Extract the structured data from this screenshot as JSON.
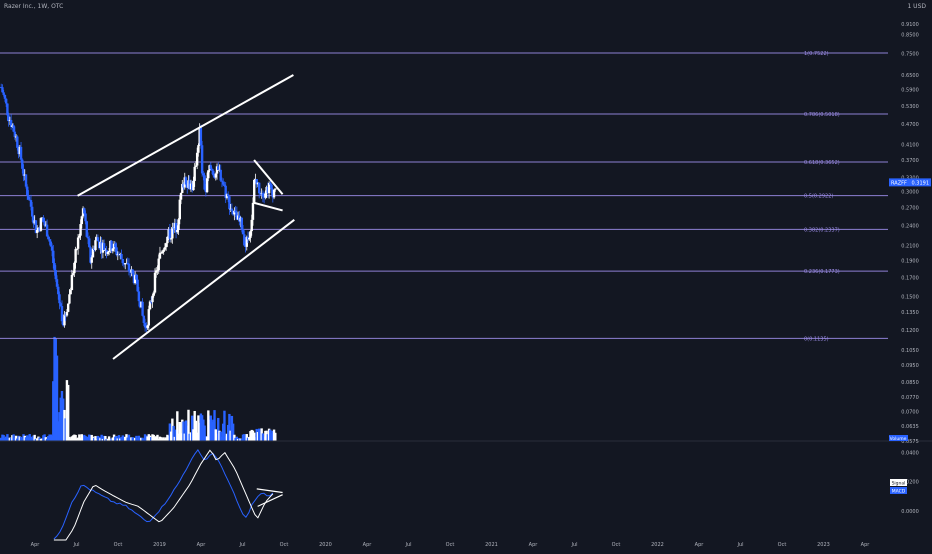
{
  "header": {
    "title": "Razer Inc., 1W, OTC",
    "currency": "USD"
  },
  "colors": {
    "background": "#131722",
    "bull": "#ffffff",
    "bear": "#2962ff",
    "fib_line": "#9c8ce8",
    "trendline": "#ffffff",
    "macd_line": "#2962ff",
    "signal_line": "#ffffff",
    "axis_text": "#b2b5be",
    "price_tag": "#2962ff"
  },
  "chart_data": [
    {
      "type": "candlestick",
      "scale": "log",
      "ylim": [
        0.0575,
        1.0
      ],
      "y_ticks": [
        1.0,
        0.91,
        0.85,
        0.75,
        0.65,
        0.59,
        0.53,
        0.47,
        0.41,
        0.37,
        0.33,
        0.3,
        0.27,
        0.24,
        0.21,
        0.19,
        0.17,
        0.15,
        0.135,
        0.12,
        0.105,
        0.095,
        0.085,
        0.077,
        0.07,
        0.0635,
        0.0575
      ],
      "y_tick_labels": [
        "1 USD",
        "0.9100",
        "0.8500",
        "0.7500",
        "0.6500",
        "0.5900",
        "0.5300",
        "0.4700",
        "0.4100",
        "0.3700",
        "0.3300",
        "0.3000",
        "0.2700",
        "0.2400",
        "0.2100",
        "0.1900",
        "0.1700",
        "0.1500",
        "0.1350",
        "0.1200",
        "0.1050",
        "0.0950",
        "0.0850",
        "0.0770",
        "0.0700",
        "0.0635",
        "0.0575"
      ],
      "x_ticks": [
        "Apr",
        "Jul",
        "Oct",
        "2019",
        "Apr",
        "Jul",
        "Oct",
        "2020",
        "Apr",
        "Jul",
        "Oct",
        "2021",
        "Apr",
        "Jul",
        "Oct",
        "2022",
        "Apr",
        "Jul",
        "Oct",
        "2023",
        "Apr"
      ],
      "fib_levels": [
        {
          "label": "1(0.7522)",
          "value": 0.7522
        },
        {
          "label": "0.786(0.5018)",
          "value": 0.5018
        },
        {
          "label": "0.618(0.3652)",
          "value": 0.3652
        },
        {
          "label": "0.5(0.2922)",
          "value": 0.2922
        },
        {
          "label": "0.382(0.2337)",
          "value": 0.2337
        },
        {
          "label": "0.236(0.1773)",
          "value": 0.1773
        },
        {
          "label": "0(0.1135)",
          "value": 0.1135
        }
      ],
      "last_price_label": "RAZFF",
      "last_price": "0.3191",
      "volume_tag": "Volume",
      "anchor_prices": [
        [
          "2018-01-01",
          0.6
        ],
        [
          "2018-02-10",
          0.5
        ],
        [
          "2018-03-20",
          0.44
        ],
        [
          "2018-04-20",
          0.38
        ],
        [
          "2018-05-20",
          0.31
        ],
        [
          "2018-06-20",
          0.27
        ],
        [
          "2018-07-20",
          0.23
        ],
        [
          "2018-08-20",
          0.25
        ],
        [
          "2018-09-20",
          0.23
        ],
        [
          "2018-10-15",
          0.2
        ],
        [
          "2018-11-01",
          0.17
        ],
        [
          "2018-12-01",
          0.14
        ],
        [
          "2018-12-20",
          0.125
        ],
        [
          "2019-01-20",
          0.15
        ],
        [
          "2019-02-20",
          0.19
        ],
        [
          "2019-03-20",
          0.23
        ],
        [
          "2019-04-10",
          0.27
        ],
        [
          "2019-05-01",
          0.22
        ],
        [
          "2019-05-20",
          0.19
        ],
        [
          "2019-06-20",
          0.22
        ],
        [
          "2019-07-20",
          0.21
        ],
        [
          "2019-08-20",
          0.205
        ],
        [
          "2019-09-20",
          0.21
        ],
        [
          "2019-10-20",
          0.2
        ],
        [
          "2019-11-20",
          0.19
        ],
        [
          "2019-12-20",
          0.18
        ],
        [
          "2020-01-20",
          0.17
        ],
        [
          "2020-02-20",
          0.15
        ],
        [
          "2020-03-10",
          0.13
        ],
        [
          "2020-03-25",
          0.12
        ],
        [
          "2020-04-20",
          0.14
        ],
        [
          "2020-05-20",
          0.17
        ],
        [
          "2020-06-20",
          0.2
        ],
        [
          "2020-07-20",
          0.22
        ],
        [
          "2020-08-20",
          0.23
        ],
        [
          "2020-09-20",
          0.24
        ],
        [
          "2020-10-15",
          0.3
        ],
        [
          "2020-11-01",
          0.33
        ],
        [
          "2020-11-20",
          0.32
        ],
        [
          "2020-12-20",
          0.31
        ],
        [
          "2021-01-10",
          0.39
        ],
        [
          "2021-01-25",
          0.45
        ],
        [
          "2021-02-10",
          0.33
        ],
        [
          "2021-03-01",
          0.3
        ],
        [
          "2021-03-20",
          0.35
        ],
        [
          "2021-04-20",
          0.34
        ],
        [
          "2021-05-20",
          0.34
        ],
        [
          "2021-06-20",
          0.3
        ],
        [
          "2021-07-20",
          0.27
        ],
        [
          "2021-08-20",
          0.25
        ],
        [
          "2021-09-20",
          0.24
        ],
        [
          "2021-10-10",
          0.21
        ],
        [
          "2021-10-25",
          0.22
        ],
        [
          "2021-11-20",
          0.26
        ],
        [
          "2021-12-01",
          0.33
        ],
        [
          "2021-12-20",
          0.31
        ],
        [
          "2022-01-20",
          0.3
        ],
        [
          "2022-02-20",
          0.31
        ],
        [
          "2022-03-20",
          0.3
        ],
        [
          "2022-04-01",
          0.3191
        ]
      ],
      "trendlines": [
        {
          "name": "channel-upper",
          "from": [
            "2019-03-15",
            0.292
          ],
          "to": [
            "2022-07-15",
            0.65
          ]
        },
        {
          "name": "channel-lower",
          "from": [
            "2019-10-01",
            0.099
          ],
          "to": [
            "2022-07-20",
            0.249
          ]
        },
        {
          "name": "triangle-upper",
          "from": [
            "2021-12-05",
            0.37
          ],
          "to": [
            "2022-05-15",
            0.295
          ]
        },
        {
          "name": "triangle-lower",
          "from": [
            "2021-12-01",
            0.279
          ],
          "to": [
            "2022-05-15",
            0.265
          ]
        }
      ]
    },
    {
      "type": "line",
      "ylim": [
        -0.02,
        0.045
      ],
      "y_ticks": [
        0.04,
        0.02,
        0.0
      ],
      "y_tick_labels": [
        "0.0400",
        "0.0200",
        "0.0000"
      ],
      "series": [
        {
          "name": "MACD",
          "color": "#2962ff"
        },
        {
          "name": "Signal",
          "color": "#ffffff"
        }
      ],
      "anchor_values": [
        [
          "2018-11-01",
          -0.02
        ],
        [
          "2018-12-15",
          -0.012
        ],
        [
          "2019-02-10",
          0.006
        ],
        [
          "2019-04-10",
          0.018
        ],
        [
          "2019-06-01",
          0.014
        ],
        [
          "2019-08-01",
          0.01
        ],
        [
          "2019-10-01",
          0.006
        ],
        [
          "2019-12-15",
          0.003
        ],
        [
          "2020-03-01",
          -0.004
        ],
        [
          "2020-04-15",
          -0.008
        ],
        [
          "2020-07-01",
          0.002
        ],
        [
          "2020-10-01",
          0.018
        ],
        [
          "2020-12-01",
          0.032
        ],
        [
          "2021-01-25",
          0.042
        ],
        [
          "2021-03-01",
          0.034
        ],
        [
          "2021-04-15",
          0.04
        ],
        [
          "2021-06-15",
          0.028
        ],
        [
          "2021-09-01",
          0.006
        ],
        [
          "2021-10-15",
          -0.006
        ],
        [
          "2021-12-01",
          0.006
        ],
        [
          "2022-01-15",
          0.012
        ],
        [
          "2022-03-01",
          0.01
        ],
        [
          "2022-04-01",
          0.013
        ]
      ],
      "trendlines": [
        {
          "name": "macd-divergence-upper",
          "from": [
            "2021-12-20",
            0.015
          ],
          "to": [
            "2022-05-15",
            0.0125
          ]
        },
        {
          "name": "macd-divergence-lower",
          "from": [
            "2021-12-25",
            0.003
          ],
          "to": [
            "2022-05-15",
            0.011
          ]
        }
      ]
    }
  ]
}
